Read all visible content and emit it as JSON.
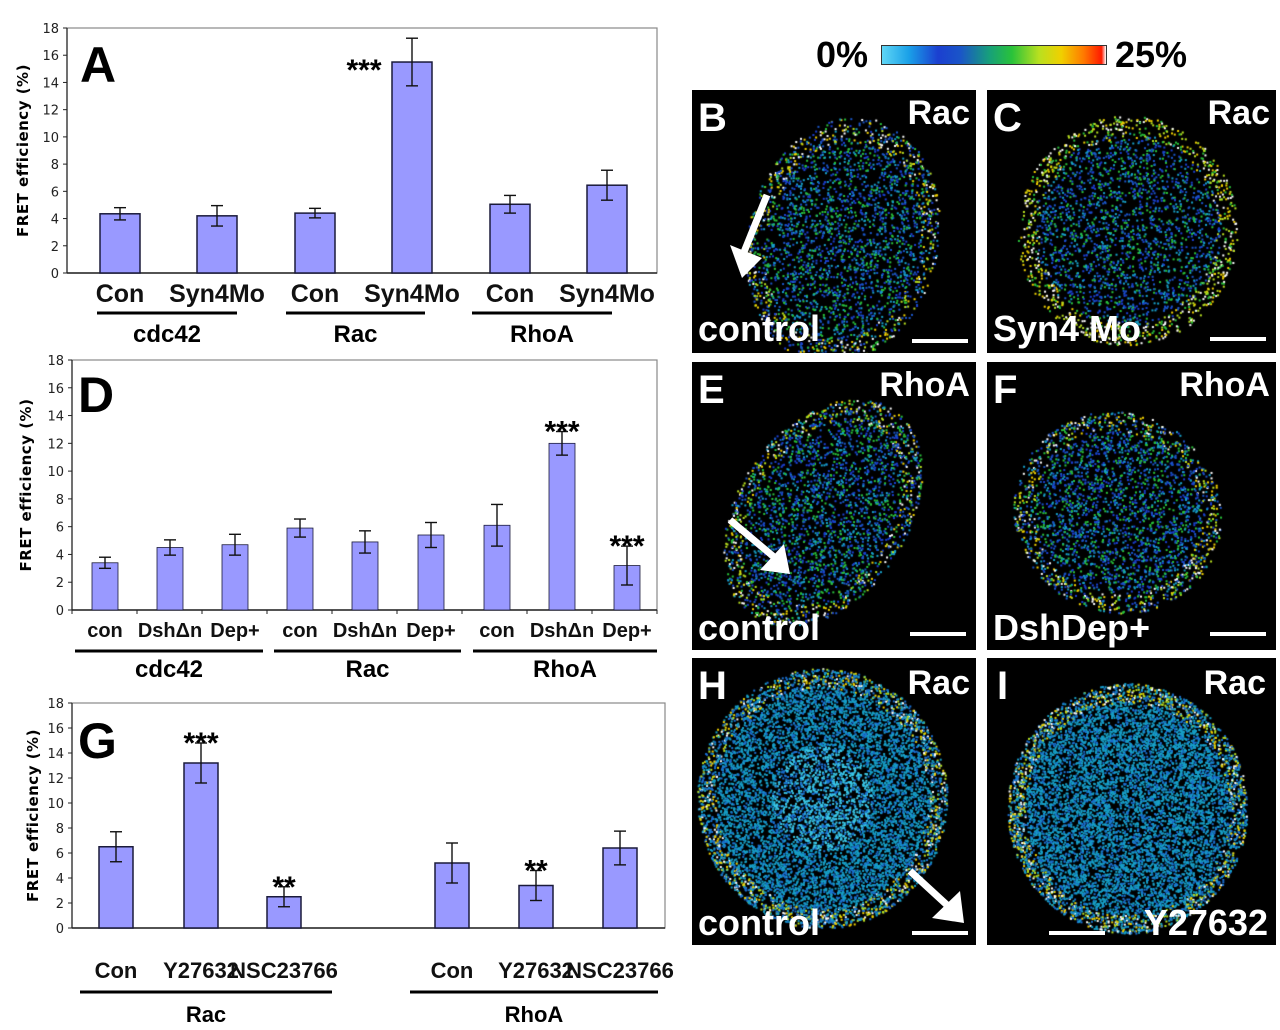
{
  "colors": {
    "bar": "#9999ff",
    "bar_stroke": "#1a1a3a",
    "panel_bg": "#000000"
  },
  "colorbar": {
    "min_label": "0%",
    "max_label": "25%"
  },
  "chart_data": [
    {
      "id": "A",
      "type": "bar",
      "panel_label": "A",
      "ylabel": "FRET efficiency (%)",
      "ylim": [
        0,
        18
      ],
      "yticks": [
        0,
        2,
        4,
        6,
        8,
        10,
        12,
        14,
        16,
        18
      ],
      "categories": [
        "Con",
        "Syn4Mo",
        "Con",
        "Syn4Mo",
        "Con",
        "Syn4Mo"
      ],
      "groups": [
        {
          "label": "cdc42",
          "members": [
            0,
            1
          ]
        },
        {
          "label": "Rac",
          "members": [
            2,
            3
          ]
        },
        {
          "label": "RhoA",
          "members": [
            4,
            5
          ]
        }
      ],
      "values": [
        4.35,
        4.2,
        4.4,
        15.5,
        5.05,
        6.45
      ],
      "errors": [
        0.45,
        0.75,
        0.35,
        1.75,
        0.65,
        1.1
      ],
      "annotations": [
        "",
        "",
        "",
        "***",
        "",
        ""
      ]
    },
    {
      "id": "D",
      "type": "bar",
      "panel_label": "D",
      "ylabel": "FRET efficiency (%)",
      "ylim": [
        0,
        18
      ],
      "yticks": [
        0,
        2,
        4,
        6,
        8,
        10,
        12,
        14,
        16,
        18
      ],
      "categories": [
        "con",
        "DshΔn",
        "Dep+",
        "con",
        "DshΔn",
        "Dep+",
        "con",
        "DshΔn",
        "Dep+"
      ],
      "groups": [
        {
          "label": "cdc42",
          "members": [
            0,
            1,
            2
          ]
        },
        {
          "label": "Rac",
          "members": [
            3,
            4,
            5
          ]
        },
        {
          "label": "RhoA",
          "members": [
            6,
            7,
            8
          ]
        }
      ],
      "values": [
        3.4,
        4.5,
        4.7,
        5.9,
        4.9,
        5.4,
        6.1,
        12.0,
        3.2
      ],
      "errors": [
        0.4,
        0.55,
        0.75,
        0.65,
        0.8,
        0.9,
        1.5,
        0.85,
        1.4
      ],
      "annotations": [
        "",
        "",
        "",
        "",
        "",
        "",
        "",
        "***",
        "***"
      ]
    },
    {
      "id": "G",
      "type": "bar",
      "panel_label": "G",
      "ylabel": "FRET efficiency (%)",
      "ylim": [
        0,
        18
      ],
      "yticks": [
        0,
        2,
        4,
        6,
        8,
        10,
        12,
        14,
        16,
        18
      ],
      "categories": [
        "Con",
        "Y27632",
        "NSC23766",
        "Con",
        "Y27632",
        "NSC23766"
      ],
      "groups": [
        {
          "label": "Rac",
          "members": [
            0,
            1,
            2
          ]
        },
        {
          "label": "RhoA",
          "members": [
            3,
            4,
            5
          ]
        }
      ],
      "values": [
        6.5,
        13.2,
        2.5,
        5.2,
        3.4,
        6.4
      ],
      "errors": [
        1.2,
        1.6,
        0.8,
        1.6,
        1.2,
        1.35
      ],
      "annotations": [
        "",
        "***",
        "**",
        "",
        "**",
        ""
      ]
    }
  ],
  "panels": [
    {
      "label": "B",
      "probe": "Rac",
      "condition": "control"
    },
    {
      "label": "C",
      "probe": "Rac",
      "condition": "Syn4 Mo"
    },
    {
      "label": "E",
      "probe": "RhoA",
      "condition": "control"
    },
    {
      "label": "F",
      "probe": "RhoA",
      "condition": "DshDep+"
    },
    {
      "label": "H",
      "probe": "Rac",
      "condition": "control"
    },
    {
      "label": "I",
      "probe": "Rac",
      "condition": "Y27632"
    }
  ]
}
